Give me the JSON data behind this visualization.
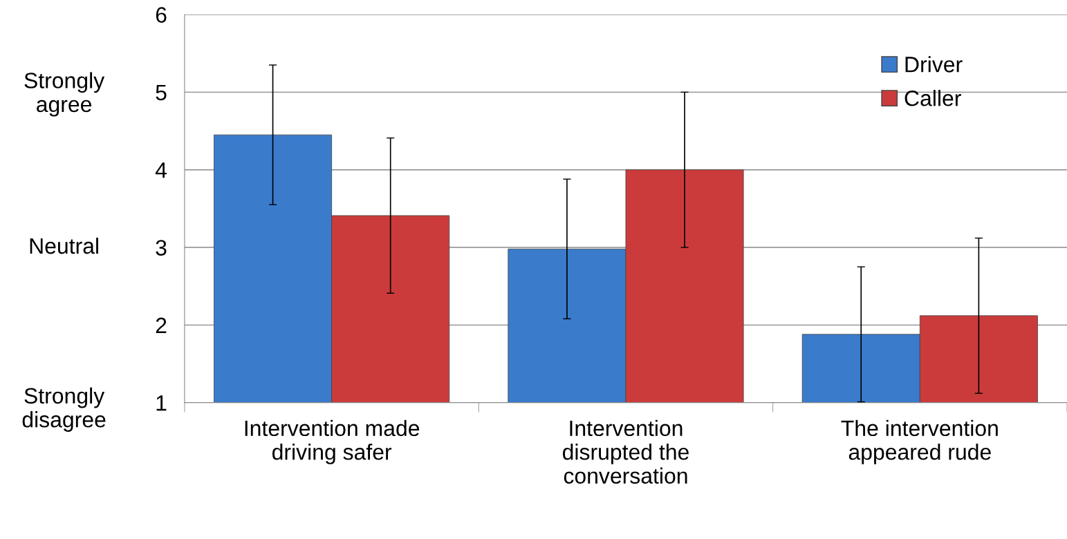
{
  "chart_data": {
    "type": "bar",
    "categories": [
      "Intervention made driving safer",
      "Intervention disrupted the conversation",
      "The intervention appeared rude"
    ],
    "series": [
      {
        "name": "Driver",
        "color": "#3b7bcc",
        "values": [
          4.45,
          2.98,
          1.88
        ],
        "errors": [
          0.9,
          0.9,
          0.87
        ]
      },
      {
        "name": "Caller",
        "color": "#cc3b3b",
        "values": [
          3.41,
          4.0,
          2.12
        ],
        "errors": [
          1.0,
          1.0,
          1.0
        ]
      }
    ],
    "ylim": [
      1,
      6
    ],
    "yticks": [
      1,
      2,
      3,
      4,
      5,
      6
    ],
    "annotations": [
      "Strongly agree",
      "Neutral",
      "Strongly disagree"
    ],
    "grid": "y",
    "legend": "top right"
  }
}
